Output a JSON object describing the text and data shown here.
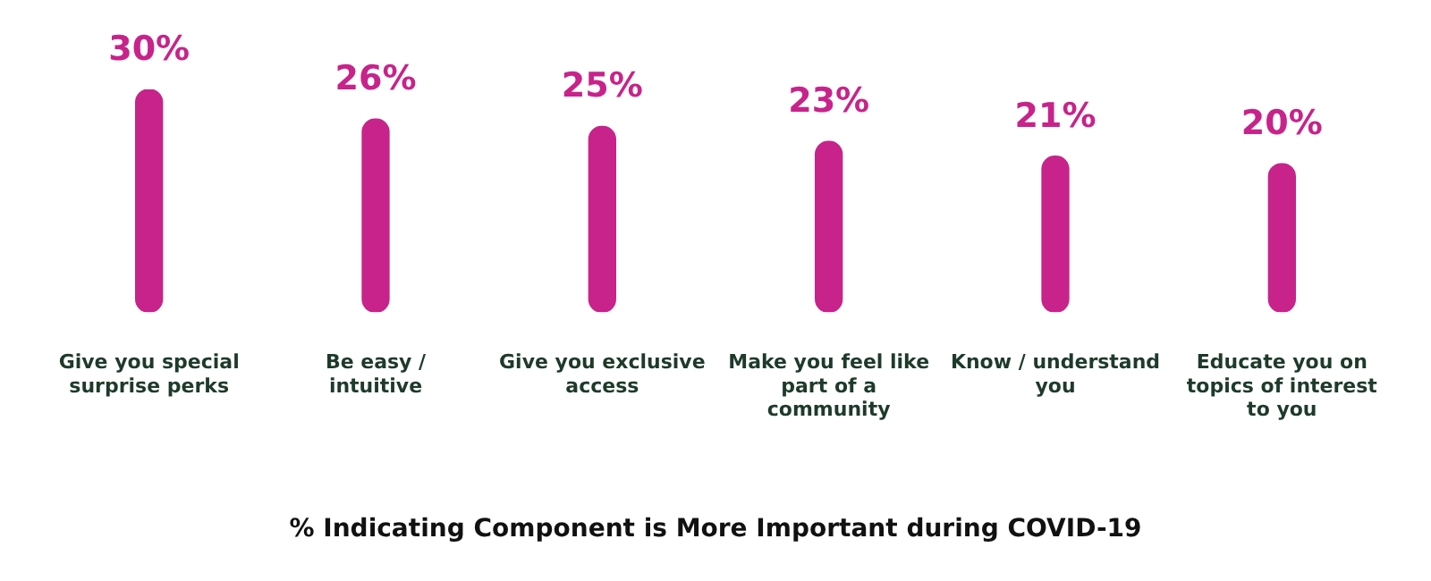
{
  "chart_data": {
    "type": "bar",
    "title": "% Indicating Component is More Important during COVID-19",
    "categories": [
      "Give you special surprise perks",
      "Be easy / intuitive",
      "Give you exclusive access",
      "Make you feel like part of a community",
      "Know / understand you",
      "Educate you on topics of interest to you"
    ],
    "values": [
      30,
      26,
      25,
      23,
      21,
      20
    ],
    "color": "#c8238a",
    "value_labels": [
      "30%",
      "26%",
      "25%",
      "23%",
      "21%",
      "20%"
    ],
    "grid": false,
    "legend": false
  }
}
